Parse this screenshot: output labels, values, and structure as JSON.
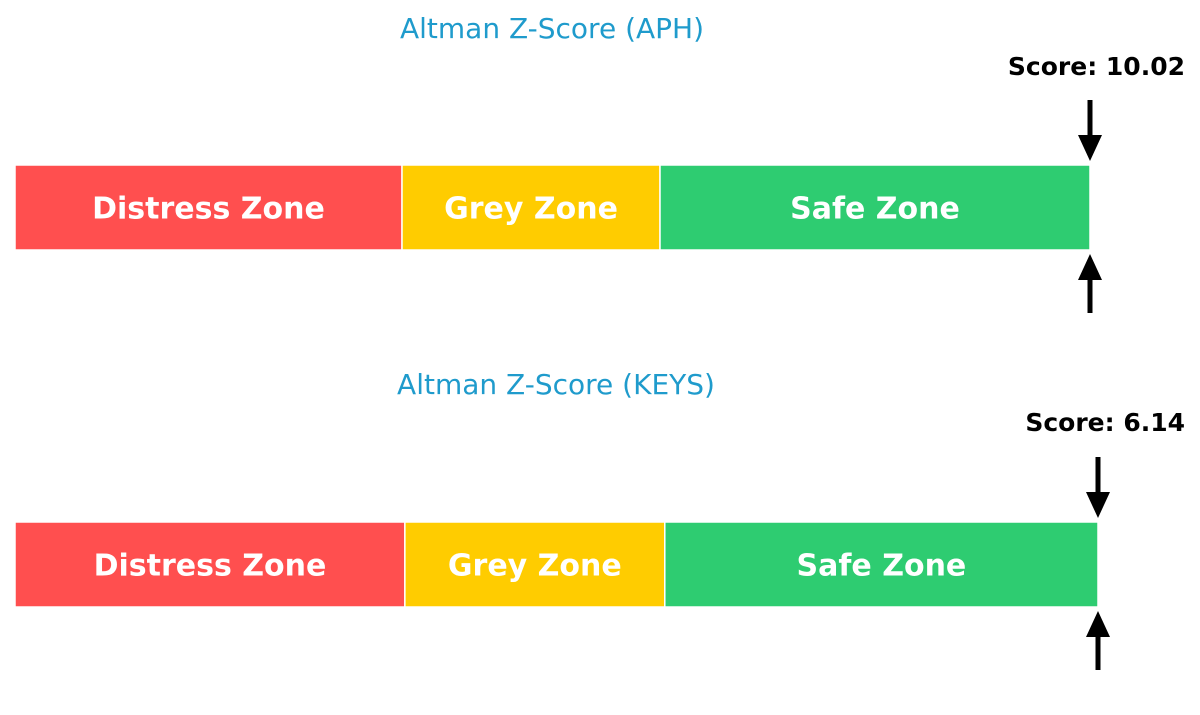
{
  "chart_data": [
    {
      "type": "bar",
      "title": "Altman Z-Score (APH)",
      "score_label": "Score: 10.02",
      "score": 10.02,
      "xlim": [
        0,
        5
      ],
      "zones": [
        {
          "name": "Distress Zone",
          "from": 0,
          "to": 1.8,
          "color": "#ff4f4f"
        },
        {
          "name": "Grey Zone",
          "from": 1.8,
          "to": 3.0,
          "color": "#ffcc00"
        },
        {
          "name": "Safe Zone",
          "from": 3.0,
          "to": 5.0,
          "color": "#2ecc71"
        }
      ]
    },
    {
      "type": "bar",
      "title": "Altman Z-Score (KEYS)",
      "score_label": "Score: 6.14",
      "score": 6.14,
      "xlim": [
        0,
        5
      ],
      "zones": [
        {
          "name": "Distress Zone",
          "from": 0,
          "to": 1.8,
          "color": "#ff4f4f"
        },
        {
          "name": "Grey Zone",
          "from": 1.8,
          "to": 3.0,
          "color": "#ffcc00"
        },
        {
          "name": "Safe Zone",
          "from": 3.0,
          "to": 5.0,
          "color": "#2ecc71"
        }
      ]
    }
  ]
}
